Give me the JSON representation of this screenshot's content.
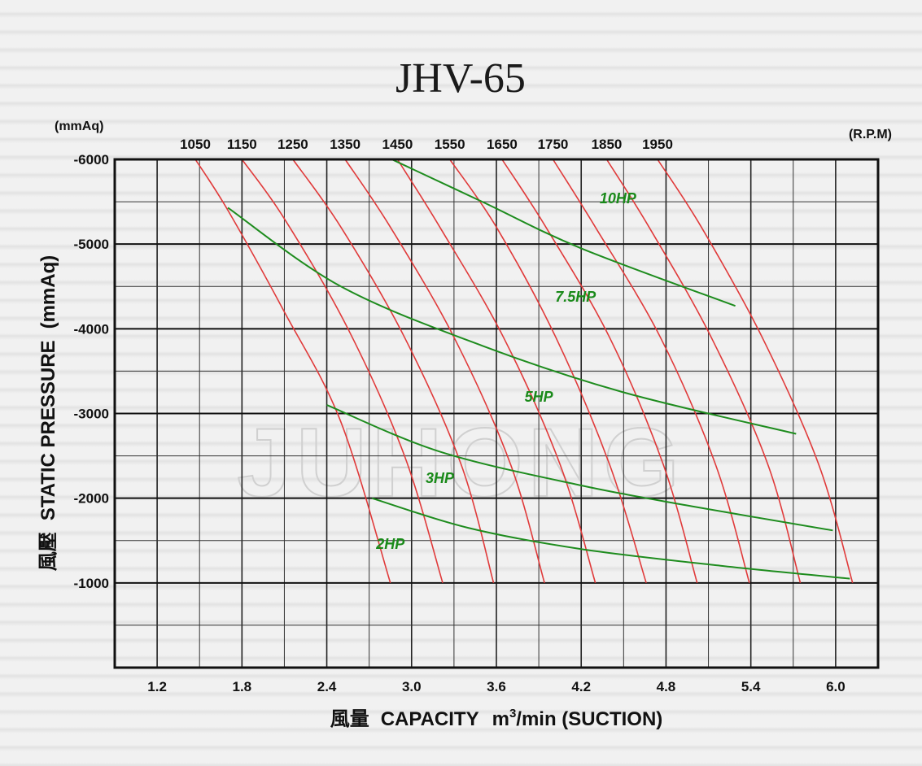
{
  "chart_data": {
    "type": "line",
    "title": "JHV-65",
    "xlabel_cjk": "風量",
    "xlabel": "CAPACITY",
    "xlabel_unit_base": "m",
    "xlabel_unit_sup": "3",
    "xlabel_unit_rest": "/min (SUCTION)",
    "ylabel_cjk": "風壓",
    "ylabel": "STATIC  PRESSURE",
    "ylabel_unit": "(mmAq)",
    "y_unit_top": "(mmAq)",
    "rpm_unit": "(R.P.M)",
    "xlim": [
      0.9,
      6.3
    ],
    "ylim": [
      0,
      -6000
    ],
    "x_ticks": [
      "1.2",
      "1.8",
      "2.4",
      "3.0",
      "3.6",
      "4.2",
      "4.8",
      "5.4",
      "6.0"
    ],
    "x_tick_values": [
      1.2,
      1.8,
      2.4,
      3.0,
      3.6,
      4.2,
      4.8,
      5.4,
      6.0
    ],
    "y_ticks": [
      "-1000",
      "-2000",
      "-3000",
      "-4000",
      "-5000",
      "-6000"
    ],
    "y_tick_values": [
      -1000,
      -2000,
      -3000,
      -4000,
      -5000,
      -6000
    ],
    "grid": true,
    "watermark": "JUHONG",
    "rpm_curves": [
      {
        "label": "1050",
        "points": [
          [
            1.47,
            -6000
          ],
          [
            1.7,
            -5400
          ],
          [
            2.1,
            -4200
          ],
          [
            2.5,
            -2900
          ],
          [
            2.85,
            -1000
          ]
        ]
      },
      {
        "label": "1150",
        "points": [
          [
            1.8,
            -6000
          ],
          [
            2.1,
            -5300
          ],
          [
            2.55,
            -4000
          ],
          [
            2.95,
            -2500
          ],
          [
            3.22,
            -1000
          ]
        ]
      },
      {
        "label": "1250",
        "points": [
          [
            2.16,
            -6000
          ],
          [
            2.5,
            -5200
          ],
          [
            2.95,
            -3900
          ],
          [
            3.35,
            -2400
          ],
          [
            3.58,
            -1000
          ]
        ]
      },
      {
        "label": "1350",
        "points": [
          [
            2.53,
            -6000
          ],
          [
            2.85,
            -5200
          ],
          [
            3.3,
            -3900
          ],
          [
            3.7,
            -2400
          ],
          [
            3.94,
            -1000
          ]
        ]
      },
      {
        "label": "1450",
        "points": [
          [
            2.9,
            -6000
          ],
          [
            3.2,
            -5200
          ],
          [
            3.65,
            -3900
          ],
          [
            4.05,
            -2400
          ],
          [
            4.3,
            -1000
          ]
        ]
      },
      {
        "label": "1550",
        "points": [
          [
            3.27,
            -6000
          ],
          [
            3.6,
            -5200
          ],
          [
            4.02,
            -3900
          ],
          [
            4.4,
            -2400
          ],
          [
            4.66,
            -1000
          ]
        ]
      },
      {
        "label": "1650",
        "points": [
          [
            3.64,
            -6000
          ],
          [
            3.95,
            -5200
          ],
          [
            4.4,
            -3900
          ],
          [
            4.78,
            -2400
          ],
          [
            5.02,
            -1000
          ]
        ]
      },
      {
        "label": "1750",
        "points": [
          [
            4.0,
            -6000
          ],
          [
            4.3,
            -5200
          ],
          [
            4.76,
            -3900
          ],
          [
            5.15,
            -2400
          ],
          [
            5.39,
            -1000
          ]
        ]
      },
      {
        "label": "1850",
        "points": [
          [
            4.38,
            -6000
          ],
          [
            4.68,
            -5200
          ],
          [
            5.12,
            -3900
          ],
          [
            5.52,
            -2400
          ],
          [
            5.75,
            -1000
          ]
        ]
      },
      {
        "label": "1950",
        "points": [
          [
            4.74,
            -6000
          ],
          [
            5.05,
            -5200
          ],
          [
            5.48,
            -3900
          ],
          [
            5.88,
            -2400
          ],
          [
            6.12,
            -1000
          ]
        ]
      }
    ],
    "hp_curves": [
      {
        "label": "10HP",
        "points": [
          [
            2.86,
            -6000
          ],
          [
            3.5,
            -5500
          ],
          [
            4.2,
            -4950
          ],
          [
            5.29,
            -4270
          ]
        ],
        "label_at": [
          4.46,
          -5480
        ]
      },
      {
        "label": "7.5HP",
        "points": [
          [
            1.7,
            -5430
          ],
          [
            2.5,
            -4500
          ],
          [
            3.5,
            -3800
          ],
          [
            4.5,
            -3250
          ],
          [
            5.72,
            -2760
          ]
        ],
        "label_at": [
          4.16,
          -4320
        ]
      },
      {
        "label": "5HP",
        "points": [
          [
            2.4,
            -3100
          ],
          [
            3.2,
            -2550
          ],
          [
            4.2,
            -2150
          ],
          [
            5.0,
            -1900
          ],
          [
            5.98,
            -1620
          ]
        ],
        "label_at": [
          3.9,
          -3140
        ]
      },
      {
        "label": "3HP",
        "points": [
          [
            2.72,
            -2000
          ],
          [
            3.4,
            -1650
          ],
          [
            4.2,
            -1400
          ],
          [
            5.2,
            -1200
          ],
          [
            6.1,
            -1050
          ]
        ],
        "label_at": [
          3.2,
          -2180
        ]
      },
      {
        "label": "2HP",
        "points": [],
        "label_at": [
          2.85,
          -1400
        ]
      }
    ]
  }
}
